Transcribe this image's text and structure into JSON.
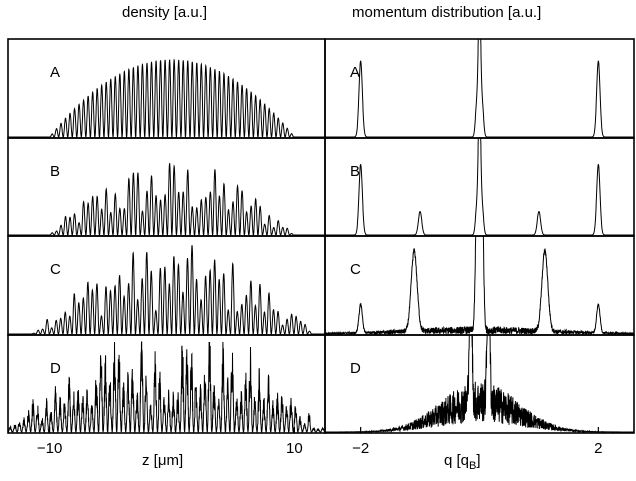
{
  "titles": {
    "left": "density  [a.u.]",
    "right": "momentum distribution  [a.u.]"
  },
  "xlabels": {
    "left": "z  [μm]",
    "right_main": "q  [q",
    "right_sub": "B",
    "right_close": "]"
  },
  "chart_data": [
    {
      "type": "line",
      "title": "density  [a.u.]",
      "xlabel": "z  [μm]",
      "ylabel": "",
      "xlim": [
        -13.4,
        12.5
      ],
      "xticks": [
        -10,
        10
      ],
      "xtick_labels": [
        "−10",
        "10"
      ],
      "series": [
        {
          "panel": "A",
          "support_z": [
            -10.0,
            10.0
          ],
          "peak_spacing_z": 0.37,
          "max_height": 0.85,
          "envelope": "smooth inverted parabola, regular fringes"
        },
        {
          "panel": "B",
          "support_z": [
            -10.0,
            10.0
          ],
          "peak_spacing_z": 0.37,
          "max_height": 0.85,
          "envelope": "parabolic, irregular fringe heights"
        },
        {
          "panel": "C",
          "support_z": [
            -11.5,
            11.5
          ],
          "peak_spacing_z": 0.37,
          "max_height": 1.0,
          "envelope": "broader, strongly irregular"
        },
        {
          "panel": "D",
          "support_z": [
            -13.4,
            12.5
          ],
          "peak_spacing_z": 0.37,
          "max_height": 1.0,
          "envelope": "broad with noisy tails, irregular"
        }
      ]
    },
    {
      "type": "line",
      "title": "momentum distribution  [a.u.]",
      "xlabel": "q  [qB]",
      "ylabel": "",
      "xlim": [
        -2.6,
        2.6
      ],
      "xticks": [
        -2,
        2
      ],
      "xtick_labels": [
        "−2",
        "2"
      ],
      "series": [
        {
          "panel": "A",
          "peaks": [
            {
              "q": -2,
              "h": 0.8
            },
            {
              "q": -0.05,
              "h": 0.3
            },
            {
              "q": 0,
              "h": 1.5
            },
            {
              "q": 0.05,
              "h": 0.3
            },
            {
              "q": 2,
              "h": 0.8
            }
          ]
        },
        {
          "panel": "B",
          "peaks": [
            {
              "q": -2,
              "h": 0.75
            },
            {
              "q": -1.0,
              "h": 0.25
            },
            {
              "q": -0.05,
              "h": 0.25
            },
            {
              "q": 0,
              "h": 1.5
            },
            {
              "q": 0.05,
              "h": 0.25
            },
            {
              "q": 1.0,
              "h": 0.25
            },
            {
              "q": 2,
              "h": 0.75
            }
          ]
        },
        {
          "panel": "C",
          "peaks": [
            {
              "q": -2,
              "h": 0.3
            },
            {
              "q": -1.1,
              "h": 0.85
            },
            {
              "q": -0.05,
              "h": 1.2
            },
            {
              "q": 0,
              "h": 1.5
            },
            {
              "q": 0.05,
              "h": 1.2
            },
            {
              "q": 1.1,
              "h": 0.85
            },
            {
              "q": 2,
              "h": 0.3
            }
          ],
          "background": "noisy low pedestal"
        },
        {
          "panel": "D",
          "peaks": [
            {
              "q": -0.15,
              "h": 1.5
            },
            {
              "q": 0.15,
              "h": 1.5
            }
          ],
          "background": "broad noisy hump around q=0"
        }
      ]
    }
  ],
  "panels": {
    "left": [
      "A",
      "B",
      "C",
      "D"
    ],
    "right": [
      "A",
      "B",
      "C",
      "D"
    ]
  }
}
